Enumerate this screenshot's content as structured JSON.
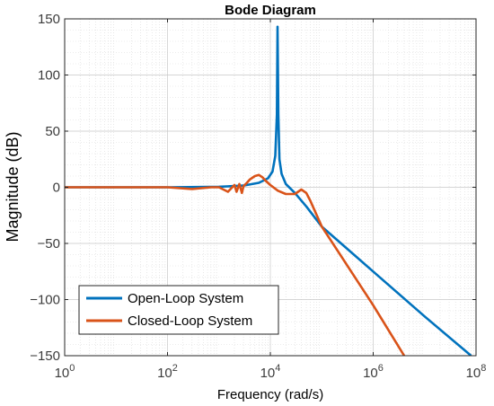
{
  "chart_data": {
    "type": "line",
    "title": "Bode Diagram",
    "xlabel": "Frequency  (rad/s)",
    "ylabel": "Magnitude (dB)",
    "x_scale": "log",
    "xlim": [
      1,
      100000000
    ],
    "ylim": [
      -150,
      150
    ],
    "x_ticks": [
      {
        "value": 1,
        "base": "10",
        "exp": "0"
      },
      {
        "value": 100,
        "base": "10",
        "exp": "2"
      },
      {
        "value": 10000,
        "base": "10",
        "exp": "4"
      },
      {
        "value": 1000000,
        "base": "10",
        "exp": "6"
      },
      {
        "value": 100000000,
        "base": "10",
        "exp": "8"
      }
    ],
    "y_ticks": [
      {
        "value": -150,
        "label": "−150"
      },
      {
        "value": -100,
        "label": "−100"
      },
      {
        "value": -50,
        "label": "−50"
      },
      {
        "value": 0,
        "label": "0"
      },
      {
        "value": 50,
        "label": "50"
      },
      {
        "value": 100,
        "label": "100"
      },
      {
        "value": 150,
        "label": "150"
      }
    ],
    "grid": true,
    "legend_position": "bottom-left",
    "series": [
      {
        "name": "Open-Loop System",
        "color": "#0072BD",
        "x": [
          1,
          10,
          100,
          1000,
          3000,
          6000,
          9000,
          11000,
          12500,
          13400,
          13800,
          14300,
          15000,
          16500,
          20000,
          30000,
          50000,
          100000,
          1000000,
          10000000,
          80000000
        ],
        "y": [
          0,
          0,
          0,
          0.5,
          1.5,
          4,
          8,
          14,
          28,
          65,
          143,
          65,
          25,
          12,
          3,
          -5,
          -17,
          -35,
          -75,
          -115,
          -150
        ]
      },
      {
        "name": "Closed-Loop System",
        "color": "#D95319",
        "x": [
          1,
          10,
          100,
          300,
          700,
          1000,
          1500,
          2000,
          2200,
          2500,
          2800,
          3000,
          3500,
          4000,
          5000,
          6000,
          7000,
          8000,
          10000,
          14000,
          20000,
          30000,
          40000,
          50000,
          60000,
          100000,
          1000000,
          4000000
        ],
        "y": [
          0,
          0,
          0,
          -1.5,
          0,
          0,
          -4,
          2,
          -4,
          3,
          -5,
          1,
          4,
          7,
          10,
          11,
          9,
          6,
          2,
          -3,
          -6,
          -6,
          -2,
          -5,
          -12,
          -35,
          -105,
          -150
        ]
      }
    ]
  }
}
